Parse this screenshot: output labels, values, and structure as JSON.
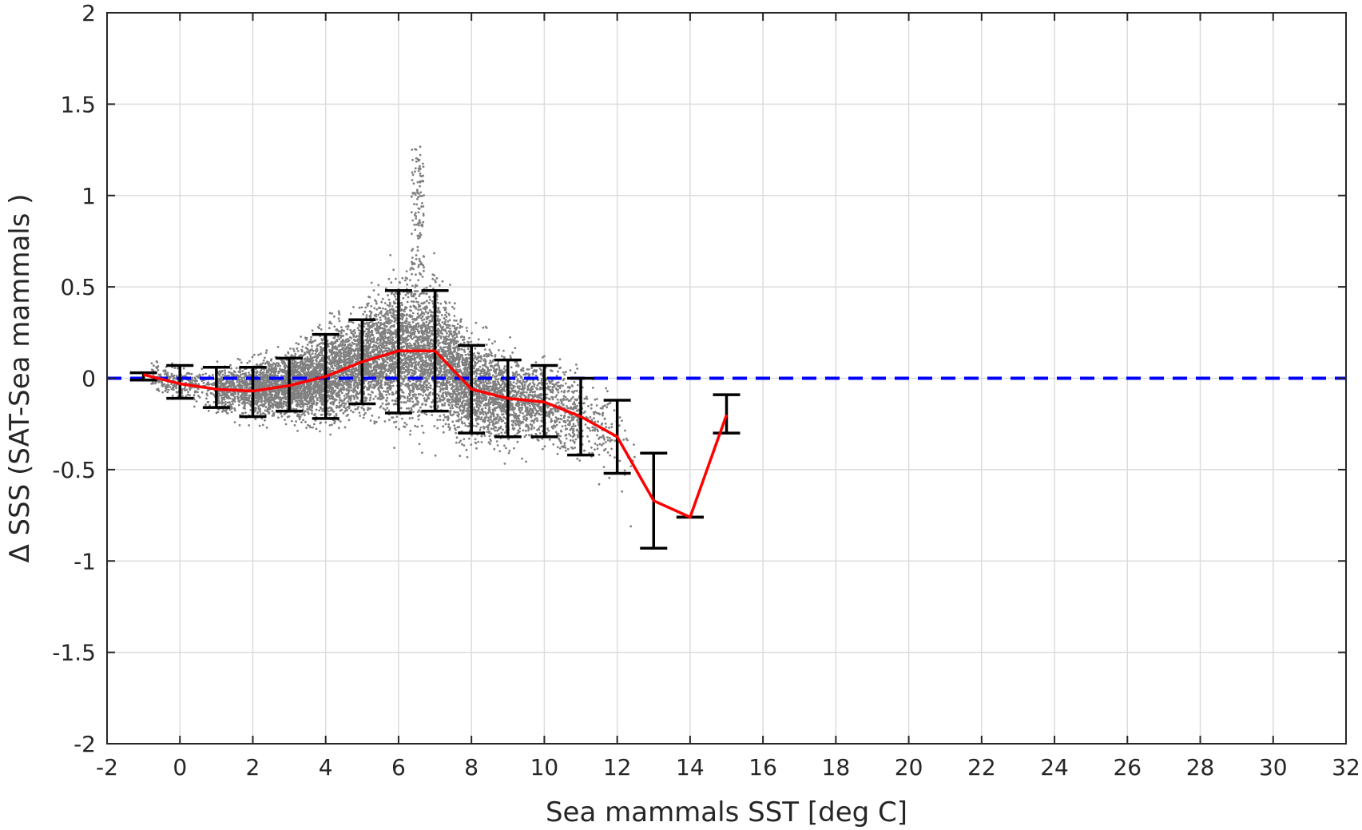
{
  "chart_data": {
    "type": "scatter",
    "title": "",
    "xlabel": "Sea mammals  SST [deg C]",
    "ylabel": "Δ SSS (SAT-Sea mammals )",
    "xlim": [
      -2,
      32
    ],
    "ylim": [
      -2,
      2
    ],
    "xticks": [
      -2,
      0,
      2,
      4,
      6,
      8,
      10,
      12,
      14,
      16,
      18,
      20,
      22,
      24,
      26,
      28,
      30,
      32
    ],
    "yticks": [
      -2,
      -1.5,
      -1,
      -0.5,
      0,
      0.5,
      1,
      1.5,
      2
    ],
    "xtick_labels": [
      "-2",
      "0",
      "2",
      "4",
      "6",
      "8",
      "10",
      "12",
      "14",
      "16",
      "18",
      "20",
      "22",
      "24",
      "26",
      "28",
      "30",
      "32"
    ],
    "ytick_labels": [
      "-2",
      "-1.5",
      "-1",
      "-0.5",
      "0",
      "0.5",
      "1",
      "1.5",
      "2"
    ],
    "grid": true,
    "zero_line": {
      "y": 0,
      "color": "#0000ff",
      "style": "dashed"
    },
    "colors": {
      "scatter": "#808080",
      "mean_line": "#ff0000",
      "error_bars": "#000000"
    },
    "scatter_extent": {
      "x_range": [
        -1,
        15
      ],
      "y_range": [
        -1.07,
        1.28
      ],
      "note": "dense point cloud, approx. 12000 points"
    },
    "series": [
      {
        "kind": "mean-line",
        "x": [
          -1,
          0,
          1,
          2,
          3,
          4,
          5,
          6,
          7,
          8,
          9,
          10,
          11,
          12,
          13,
          14,
          15
        ],
        "y": [
          0.02,
          -0.03,
          -0.06,
          -0.07,
          -0.04,
          0.01,
          0.09,
          0.15,
          0.15,
          -0.06,
          -0.11,
          -0.13,
          -0.21,
          -0.32,
          -0.67,
          -0.76,
          -0.2
        ]
      },
      {
        "kind": "error-bars",
        "x": [
          -1,
          0,
          1,
          2,
          3,
          4,
          5,
          6,
          7,
          8,
          9,
          10,
          11,
          12,
          13,
          14,
          15
        ],
        "lower": [
          -0.01,
          -0.11,
          -0.16,
          -0.21,
          -0.18,
          -0.22,
          -0.14,
          -0.19,
          -0.18,
          -0.3,
          -0.32,
          -0.32,
          -0.42,
          -0.52,
          -0.93,
          -0.76,
          -0.3
        ],
        "upper": [
          0.03,
          0.07,
          0.06,
          0.06,
          0.11,
          0.24,
          0.32,
          0.48,
          0.48,
          0.18,
          0.1,
          0.07,
          0.0,
          -0.12,
          -0.41,
          -0.76,
          -0.09
        ]
      }
    ]
  }
}
